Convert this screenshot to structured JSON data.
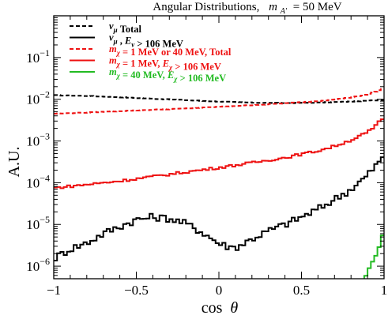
{
  "chart_data": {
    "type": "line",
    "style": "step",
    "title": {
      "prefix": "Angular Distributions,",
      "mass_symbol": "m",
      "mass_subscript": "A′",
      "mass_value": "= 50 MeV"
    },
    "xlabel": {
      "text": "cos",
      "symbol": "θ"
    },
    "ylabel": "A.U.",
    "xlim": [
      -1,
      1
    ],
    "ylim": [
      5e-07,
      1
    ],
    "yscale": "log",
    "x_ticks": [
      {
        "value": -1,
        "label": "−1"
      },
      {
        "value": -0.5,
        "label": "−0.5"
      },
      {
        "value": 0,
        "label": "0"
      },
      {
        "value": 0.5,
        "label": "0.5"
      },
      {
        "value": 1,
        "label": "1"
      }
    ],
    "y_ticks": [
      {
        "value": 1e-06,
        "base": "10",
        "exp": "−6"
      },
      {
        "value": 1e-05,
        "base": "10",
        "exp": "−5"
      },
      {
        "value": 0.0001,
        "base": "10",
        "exp": "−4"
      },
      {
        "value": 0.001,
        "base": "10",
        "exp": "−3"
      },
      {
        "value": 0.01,
        "base": "10",
        "exp": "−2"
      },
      {
        "value": 0.1,
        "base": "10",
        "exp": "−1"
      }
    ],
    "grid": false,
    "legend_position": "top-left",
    "colors": {
      "black": "#000000",
      "red": "#ee1111",
      "green": "#22bb22"
    },
    "series": [
      {
        "legend": [
          {
            "t": "ν",
            "sub": "μ",
            "style": "bi"
          },
          {
            "t": " Total",
            "style": "b"
          }
        ],
        "color": "#000000",
        "dash": true,
        "x": [
          -1,
          -0.8,
          -0.6,
          -0.4,
          -0.2,
          0,
          0.2,
          0.4,
          0.6,
          0.8,
          1
        ],
        "values": [
          0.0125,
          0.012,
          0.0112,
          0.0103,
          0.0095,
          0.0088,
          0.0083,
          0.0081,
          0.0083,
          0.0088,
          0.0097
        ]
      },
      {
        "legend": [
          {
            "t": "ν",
            "sub": "μ",
            "style": "bi"
          },
          {
            "t": " , ",
            "style": "b"
          },
          {
            "t": "E",
            "sub": "ν",
            "style": "bi"
          },
          {
            "t": " > 106 MeV",
            "style": "b"
          }
        ],
        "color": "#000000",
        "dash": false,
        "x": [
          -1,
          -0.95,
          -0.9,
          -0.8,
          -0.7,
          -0.6,
          -0.5,
          -0.4,
          -0.3,
          -0.2,
          -0.1,
          0,
          0.05,
          0.1,
          0.15,
          0.2,
          0.3,
          0.4,
          0.5,
          0.6,
          0.7,
          0.8,
          0.9,
          0.95,
          1
        ],
        "values": [
          1.5e-06,
          2e-06,
          2.6e-06,
          3.6e-06,
          6e-06,
          9e-06,
          1.3e-05,
          1.5e-05,
          1.4e-05,
          1.05e-05,
          6.5e-06,
          3.5e-06,
          3e-06,
          2.8e-06,
          3.5e-06,
          4.5e-06,
          7e-06,
          1e-05,
          1.5e-05,
          2.3e-05,
          4e-05,
          7e-05,
          0.00015,
          0.00026,
          0.0004
        ]
      },
      {
        "legend": [
          {
            "t": "m",
            "sub": "χ",
            "style": "bi"
          },
          {
            "t": " = 1 MeV or 40 MeV,   Total",
            "style": "b"
          }
        ],
        "color": "#ee1111",
        "dash": true,
        "x": [
          -1,
          -0.8,
          -0.6,
          -0.4,
          -0.2,
          0,
          0.2,
          0.4,
          0.6,
          0.8,
          0.9,
          1
        ],
        "values": [
          0.0045,
          0.0048,
          0.0052,
          0.0056,
          0.006,
          0.0066,
          0.0072,
          0.008,
          0.009,
          0.011,
          0.013,
          0.018
        ]
      },
      {
        "legend": [
          {
            "t": "m",
            "sub": "χ",
            "style": "bi"
          },
          {
            "t": " = 1 MeV,   ",
            "style": "b"
          },
          {
            "t": "E",
            "sub": "χ",
            "style": "bi"
          },
          {
            "t": " > 106 MeV",
            "style": "b"
          }
        ],
        "color": "#ee1111",
        "dash": false,
        "x": [
          -1,
          -0.8,
          -0.6,
          -0.4,
          -0.2,
          0,
          0.2,
          0.4,
          0.6,
          0.7,
          0.8,
          0.9,
          0.95,
          1
        ],
        "values": [
          7.5e-05,
          9e-05,
          0.00011,
          0.00014,
          0.00018,
          0.00023,
          0.0003,
          0.0004,
          0.00058,
          0.00075,
          0.00105,
          0.0016,
          0.0023,
          0.0038
        ]
      },
      {
        "legend": [
          {
            "t": "m",
            "sub": "χ",
            "style": "bi"
          },
          {
            "t": " = 40 MeV,   ",
            "style": "b"
          },
          {
            "t": "E",
            "sub": "χ",
            "style": "bi"
          },
          {
            "t": " > 106 MeV",
            "style": "b"
          }
        ],
        "color": "#22bb22",
        "dash": false,
        "x": [
          0.82,
          0.86,
          0.9,
          0.93,
          0.96,
          0.98,
          1
        ],
        "values": [
          3e-07,
          4e-07,
          7e-07,
          1.2e-06,
          2.2e-06,
          4e-06,
          6.5e-06
        ]
      }
    ]
  }
}
